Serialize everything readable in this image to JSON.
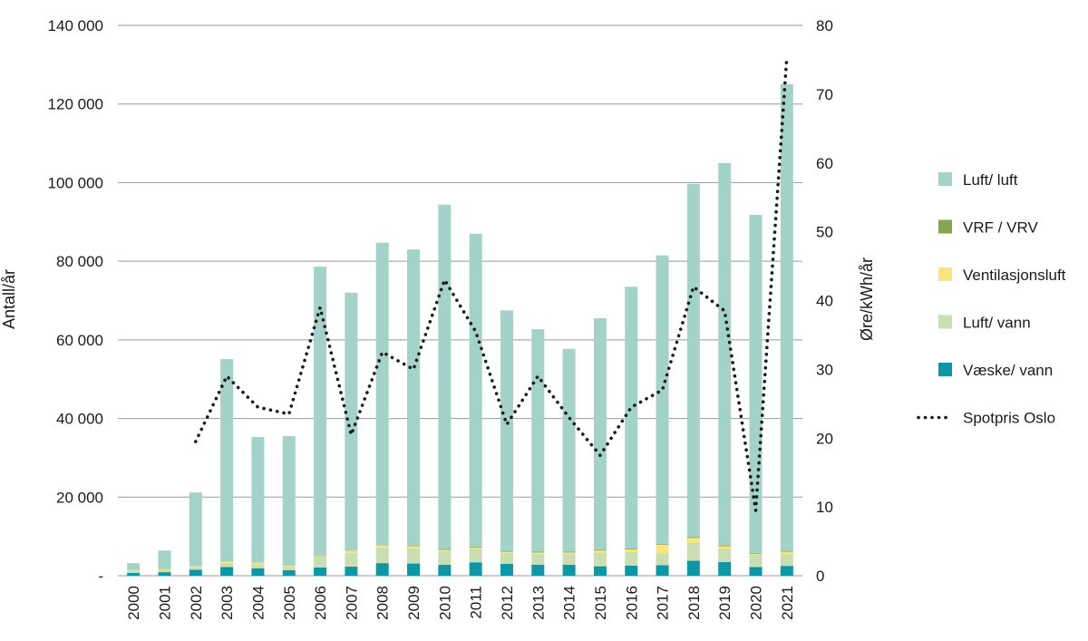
{
  "chart_data": {
    "type": "bar",
    "stacked": true,
    "categories": [
      "2000",
      "2001",
      "2002",
      "2003",
      "2004",
      "2005",
      "2006",
      "2007",
      "2008",
      "2009",
      "2010",
      "2011",
      "2012",
      "2013",
      "2014",
      "2015",
      "2016",
      "2017",
      "2018",
      "2019",
      "2020",
      "2021"
    ],
    "series": [
      {
        "name": "Væske/ vann",
        "color": "#0d97a6",
        "values": [
          700,
          900,
          1500,
          2200,
          1900,
          1400,
          2100,
          2300,
          3200,
          3100,
          2800,
          3400,
          3000,
          2800,
          2800,
          2400,
          2600,
          2700,
          3800,
          3500,
          2200,
          2500
        ]
      },
      {
        "name": "Luft/ vann",
        "color": "#c9dfb2",
        "values": [
          600,
          600,
          600,
          1000,
          1000,
          800,
          2600,
          3500,
          4000,
          3900,
          3400,
          3500,
          2800,
          2800,
          2800,
          3400,
          3400,
          3000,
          4600,
          3400,
          3100,
          2900
        ]
      },
      {
        "name": "Ventilasjonsluft",
        "color": "#f7e57a",
        "values": [
          150,
          150,
          300,
          400,
          400,
          300,
          300,
          600,
          500,
          500,
          400,
          300,
          300,
          300,
          300,
          600,
          700,
          2200,
          1200,
          600,
          300,
          700
        ]
      },
      {
        "name": "VRF / VRV",
        "color": "#85a54e",
        "values": [
          0,
          0,
          0,
          0,
          0,
          0,
          100,
          100,
          100,
          100,
          200,
          200,
          200,
          200,
          200,
          200,
          200,
          200,
          200,
          200,
          200,
          200
        ]
      },
      {
        "name": "Luft/ luft",
        "color": "#a3d3c8",
        "values": [
          1750,
          4750,
          18800,
          51500,
          32000,
          33000,
          73500,
          65500,
          76900,
          75400,
          87600,
          79600,
          61200,
          56600,
          51600,
          58900,
          66600,
          73400,
          89900,
          97300,
          86000,
          118700
        ]
      }
    ],
    "line": {
      "name": "Spotpris Oslo",
      "axis": "right",
      "x": [
        "2002",
        "2003",
        "2004",
        "2005",
        "2006",
        "2007",
        "2008",
        "2009",
        "2010",
        "2011",
        "2012",
        "2013",
        "2014",
        "2015",
        "2016",
        "2017",
        "2018",
        "2019",
        "2020",
        "2021"
      ],
      "values": [
        19.5,
        29,
        24.5,
        23.5,
        39,
        20.5,
        32.5,
        30,
        43,
        35.5,
        22,
        29,
        23,
        17.5,
        24.5,
        27,
        42,
        38.5,
        9.5,
        75.5
      ]
    },
    "y_left": {
      "label": "Antall/år",
      "min": 0,
      "max": 140000,
      "ticks": [
        {
          "value": 0,
          "label": "-"
        },
        {
          "value": 20000,
          "label": "20 000"
        },
        {
          "value": 40000,
          "label": "40 000"
        },
        {
          "value": 60000,
          "label": "60 000"
        },
        {
          "value": 80000,
          "label": "80 000"
        },
        {
          "value": 100000,
          "label": "100 000"
        },
        {
          "value": 120000,
          "label": "120 000"
        },
        {
          "value": 140000,
          "label": "140 000"
        }
      ]
    },
    "y_right": {
      "label": "Øre/kWh/år",
      "min": 0,
      "max": 80,
      "ticks": [
        "0",
        "10",
        "20",
        "30",
        "40",
        "50",
        "60",
        "70",
        "80"
      ]
    },
    "grid": true,
    "legend_position": "right",
    "legend_order": [
      "Luft/ luft",
      "VRF / VRV",
      "Ventilasjonsluft",
      "Luft/ vann",
      "Væske/ vann",
      "Spotpris Oslo"
    ]
  }
}
